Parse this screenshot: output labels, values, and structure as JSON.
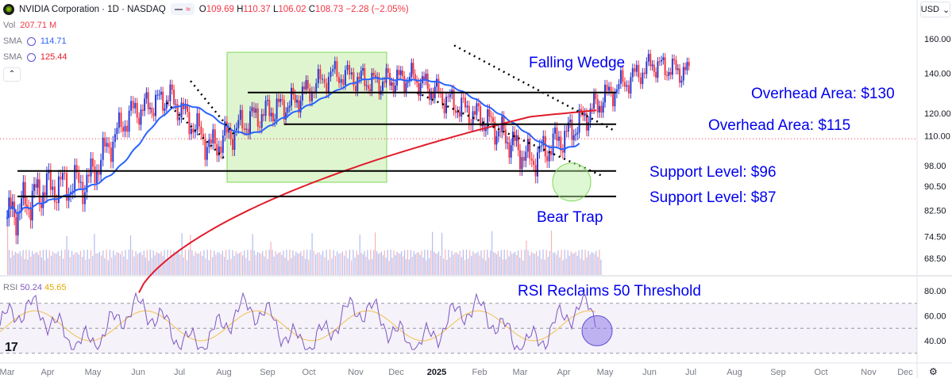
{
  "header": {
    "title": "NVIDIA Corporation · 1D · NASDAQ",
    "open_label": "O",
    "open": "109.69",
    "high_label": "H",
    "high": "110.37",
    "low_label": "L",
    "low": "106.02",
    "close_label": "C",
    "close": "108.73",
    "change": "−2.28 (−2.05%)",
    "currency": "USD",
    "logo_icon": "nvidia-logo-icon"
  },
  "indicators": {
    "vol_label": "Vol",
    "vol_value": "207.71 M",
    "sma1_label": "SMA",
    "sma1_value": "114.71",
    "sma2_label": "SMA",
    "sma2_value": "125.44",
    "rsi_label": "RSI",
    "rsi_value": "50.24",
    "rsi_ma_value": "45.65"
  },
  "colors": {
    "up": "#2a3bd1",
    "down": "#f23645",
    "sma50": "#2962ff",
    "sma200": "#e01c2b",
    "rsi": "#7e57c2",
    "rsi_ma": "#f2c14e",
    "zone": "#dff5d0",
    "annotation": "#0000ee"
  },
  "chart_data": {
    "type": "candlestick",
    "title": "NVIDIA Corporation · 1D · NASDAQ",
    "x_ticks": [
      "Mar",
      "Apr",
      "May",
      "Jun",
      "Jul",
      "Aug",
      "Sep",
      "Oct",
      "Nov",
      "Dec",
      "2025",
      "Feb",
      "Mar",
      "Apr",
      "May",
      "Jun",
      "Jul",
      "Aug",
      "Sep",
      "Oct",
      "Nov",
      "Dec"
    ],
    "y_ticks": [
      160.0,
      140.0,
      120.0,
      110.0,
      98.0,
      90.5,
      82.5,
      74.5,
      68.5
    ],
    "y_scale": "log",
    "ylim": [
      60,
      175
    ],
    "price_path_monthly": [
      {
        "x": "Mar",
        "y": 80
      },
      {
        "x": "Apr",
        "y": 90
      },
      {
        "x": "May",
        "y": 92
      },
      {
        "x": "Jun",
        "y": 120
      },
      {
        "x": "Jul",
        "y": 128
      },
      {
        "x": "Aug",
        "y": 105
      },
      {
        "x": "Sep",
        "y": 118
      },
      {
        "x": "Oct",
        "y": 125
      },
      {
        "x": "Nov",
        "y": 140
      },
      {
        "x": "Dec",
        "y": 135
      },
      {
        "x": "2025",
        "y": 138
      },
      {
        "x": "Feb",
        "y": 125
      },
      {
        "x": "Mar",
        "y": 115
      },
      {
        "x": "Apr",
        "y": 100
      },
      {
        "x": "May",
        "y": 112
      },
      {
        "x": "Jun",
        "y": 130
      },
      {
        "x": "Jul",
        "y": 145
      },
      {
        "x": "Aug",
        "y": 140
      }
    ],
    "levels": [
      {
        "label": "Overhead Area: $130",
        "value": 130
      },
      {
        "label": "Overhead Area: $115",
        "value": 115
      },
      {
        "label": "Support Level: $96",
        "value": 96
      },
      {
        "label": "Support Level: $87",
        "value": 87
      }
    ],
    "annotations": [
      "Falling Wedge",
      "Bear Trap",
      "RSI Reclaims 50 Threshold"
    ],
    "rsi": {
      "y_ticks": [
        80.0,
        60.0,
        40.0
      ],
      "ylim": [
        25,
        85
      ],
      "overbought": 70,
      "midline": 50,
      "oversold": 30
    },
    "grid": false,
    "legend": "top-left"
  }
}
